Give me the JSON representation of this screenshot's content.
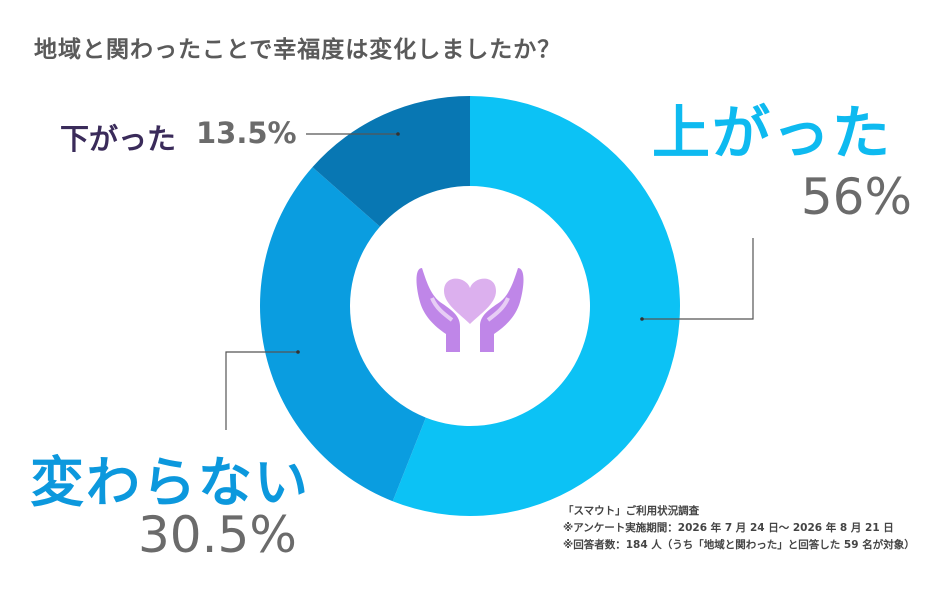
{
  "title": "地域と関わったことで幸福度は変化しましたか？",
  "chart_data": {
    "type": "pie",
    "title": "地域と関わったことで幸福度は変化しましたか？",
    "categories": [
      "上がった",
      "変わらない",
      "下がった"
    ],
    "values": [
      56,
      30.5,
      13.5
    ],
    "value_labels": [
      "56%",
      "30.5%",
      "13.5%"
    ],
    "colors": [
      "#0cc2f5",
      "#0a9de0",
      "#0877b3"
    ]
  },
  "notes": {
    "source": "「スマウト」ご利用状況調査",
    "period": "※アンケート実施期間：2026 年 7 月 24 日～ 2026 年 8 月 21 日",
    "respondents": "※回答者数：184 人（うち「地域と関わった」と回答した 59 名が対象）"
  },
  "center_icon": "heart-in-hands-icon",
  "icon_colors": [
    "#dcb2ee",
    "#b981e6"
  ]
}
